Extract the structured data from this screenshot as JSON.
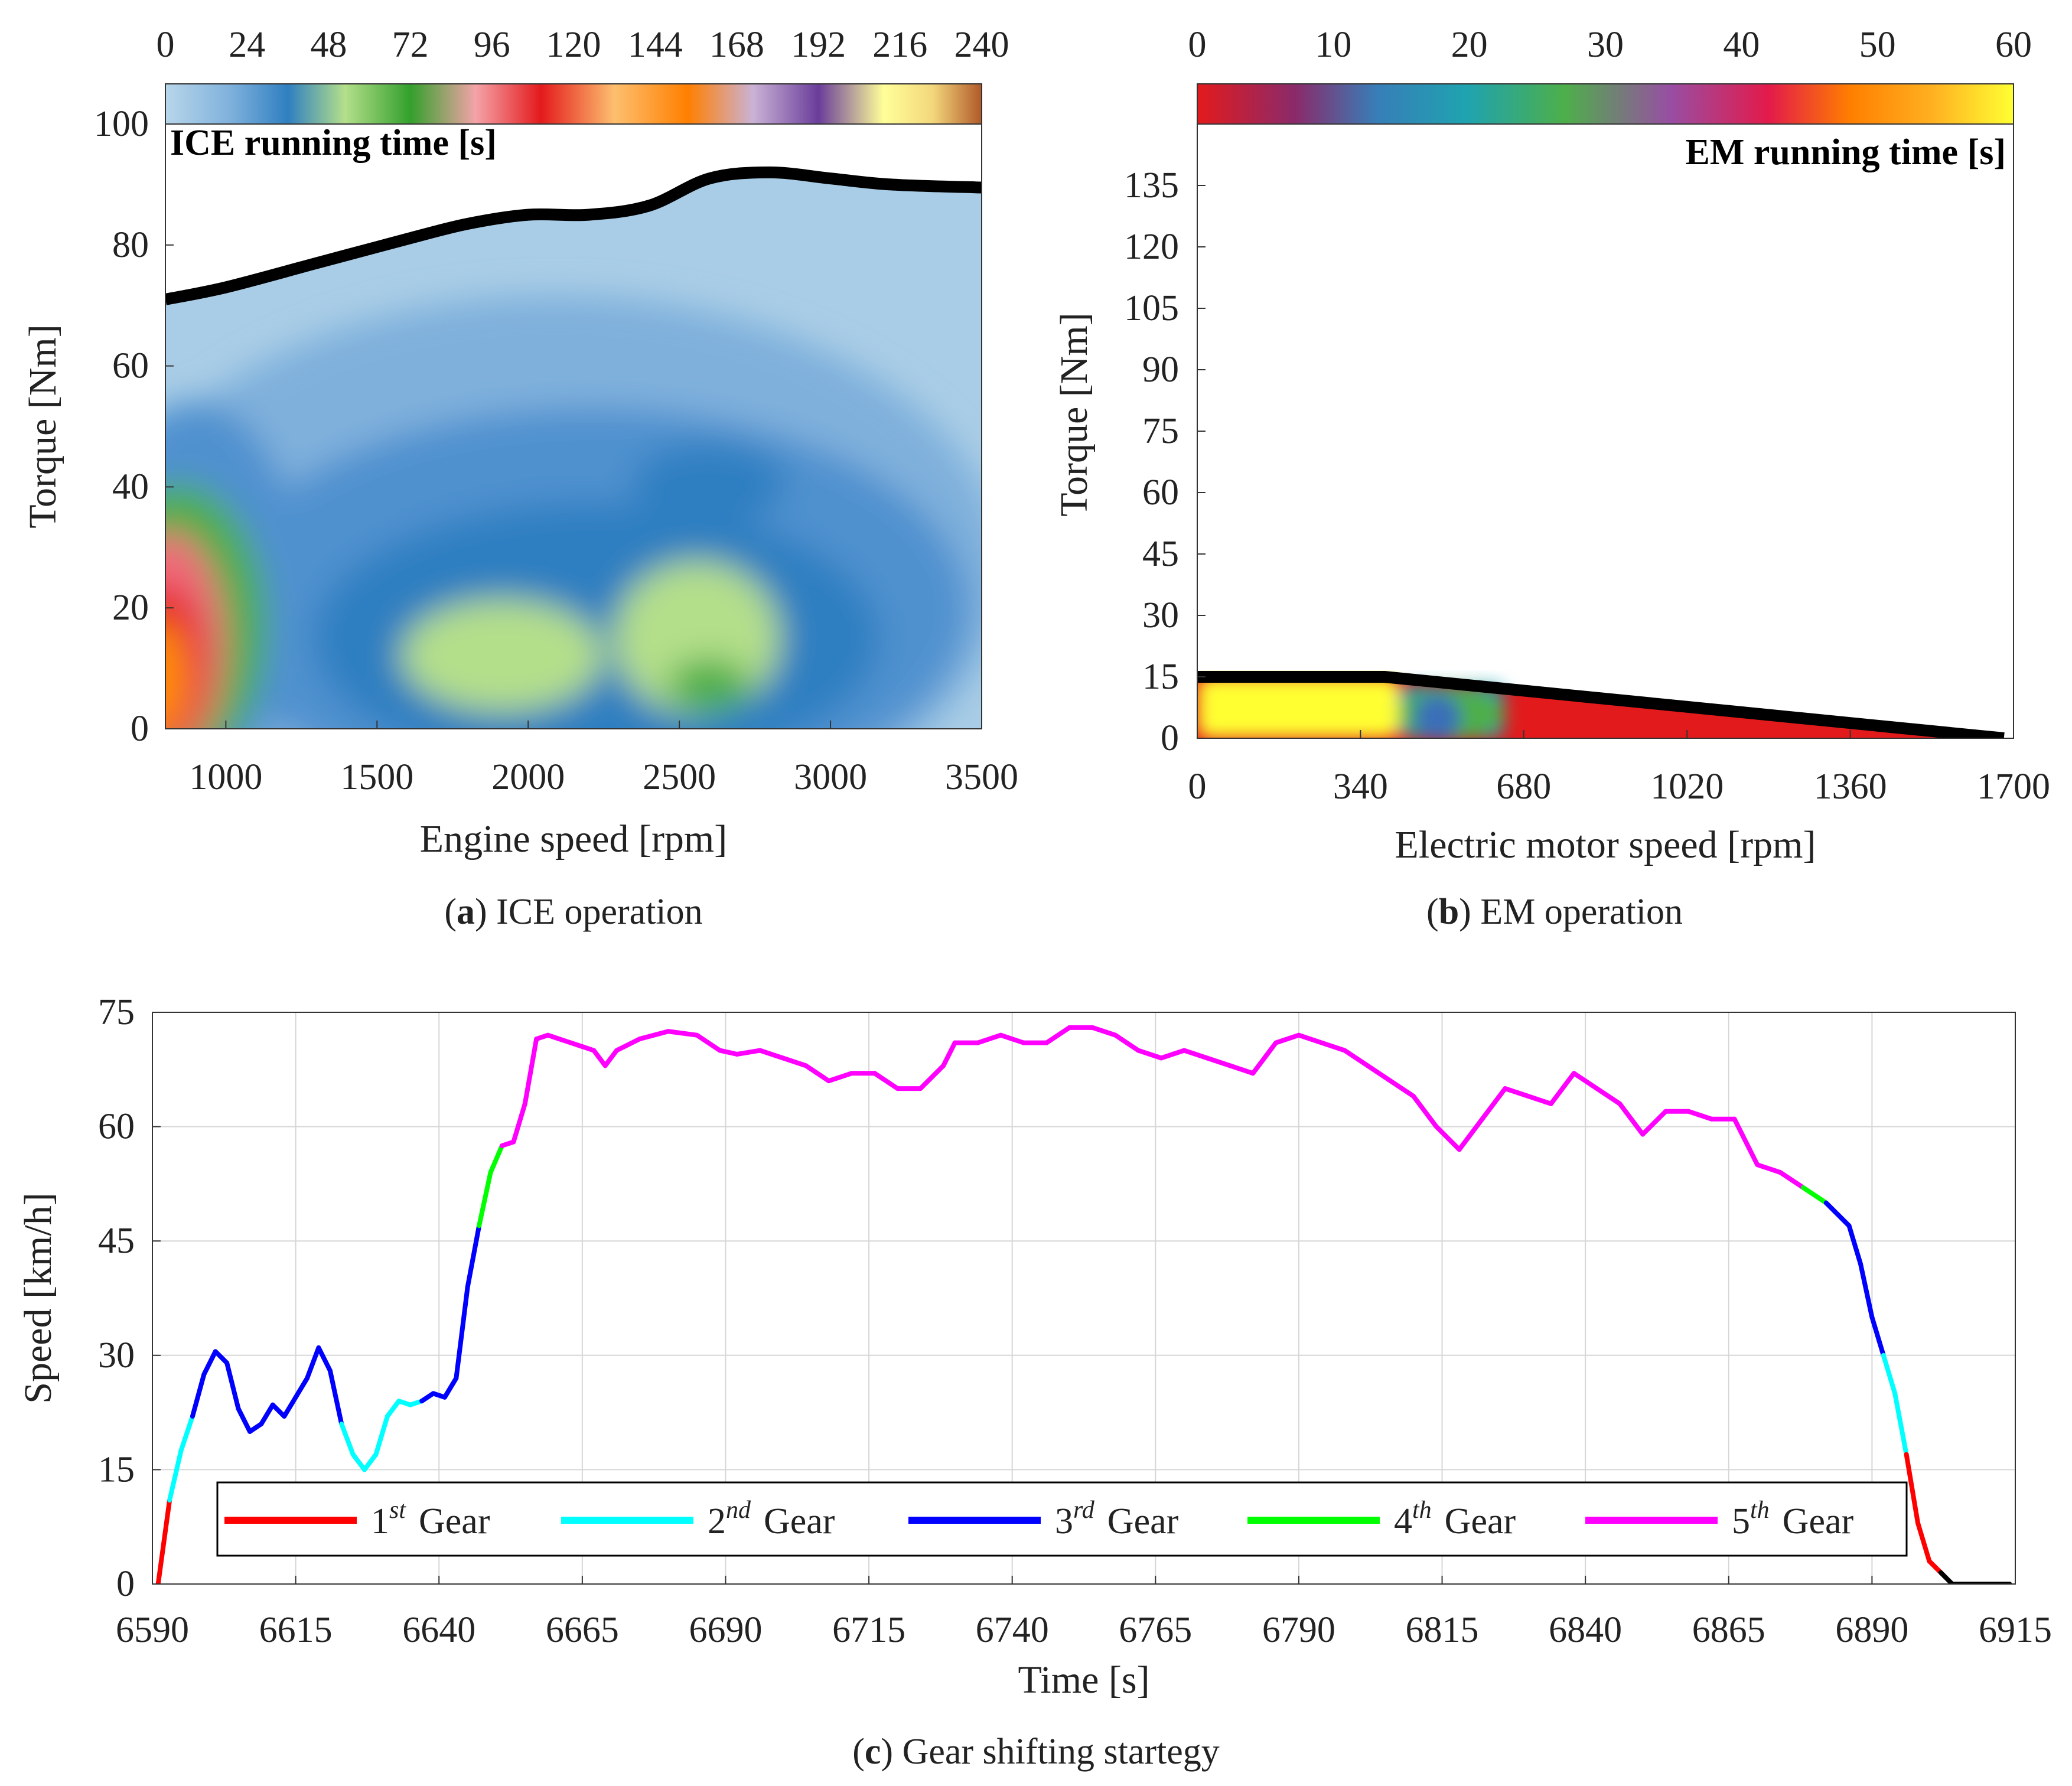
{
  "figure": {
    "panels": {
      "a": {
        "caption_letter": "a",
        "caption_text": "ICE operation",
        "inner_label": "ICE running time [s]",
        "xlabel": "Engine speed [rpm]",
        "ylabel": "Torque [Nm]",
        "x_ticks": [
          "1000",
          "1500",
          "2000",
          "2500",
          "3000",
          "3500"
        ],
        "y_ticks": [
          "0",
          "20",
          "40",
          "60",
          "80",
          "100"
        ],
        "colorbar_ticks": [
          "0",
          "24",
          "48",
          "72",
          "96",
          "120",
          "144",
          "168",
          "192",
          "216",
          "240"
        ]
      },
      "b": {
        "caption_letter": "b",
        "caption_text": "EM operation",
        "inner_label": "EM running time [s]",
        "xlabel": "Electric motor speed [rpm]",
        "ylabel": "Torque [Nm]",
        "x_ticks": [
          "0",
          "340",
          "680",
          "1020",
          "1360",
          "1700"
        ],
        "y_ticks": [
          "0",
          "15",
          "30",
          "45",
          "60",
          "75",
          "90",
          "105",
          "120",
          "135"
        ],
        "colorbar_ticks": [
          "0",
          "10",
          "20",
          "30",
          "40",
          "50",
          "60"
        ]
      },
      "c": {
        "caption_letter": "c",
        "caption_text": "Gear shifting startegy",
        "xlabel": "Time [s]",
        "ylabel": "Speed [km/h]",
        "x_ticks": [
          "6590",
          "6615",
          "6640",
          "6665",
          "6690",
          "6715",
          "6740",
          "6765",
          "6790",
          "6815",
          "6840",
          "6865",
          "6890",
          "6915"
        ],
        "y_ticks": [
          "0",
          "15",
          "30",
          "45",
          "60",
          "75"
        ],
        "legend": [
          {
            "ord": "1",
            "sup": "st",
            "word": "Gear",
            "color": "#ff0000"
          },
          {
            "ord": "2",
            "sup": "nd",
            "word": "Gear",
            "color": "#00ffff"
          },
          {
            "ord": "3",
            "sup": "rd",
            "word": "Gear",
            "color": "#0000ff"
          },
          {
            "ord": "4",
            "sup": "th",
            "word": "Gear",
            "color": "#00ff00"
          },
          {
            "ord": "5",
            "sup": "th",
            "word": "Gear",
            "color": "#ff00ff"
          }
        ]
      }
    }
  },
  "chart_data": [
    {
      "type": "heatmap",
      "panel": "a",
      "title": "ICE running time [s]",
      "xlabel": "Engine speed [rpm]",
      "ylabel": "Torque [Nm]",
      "xlim": [
        800,
        3500
      ],
      "ylim": [
        0,
        100
      ],
      "clim": [
        0,
        240
      ],
      "max_torque_curve": {
        "x": [
          800,
          1000,
          1300,
          1600,
          1800,
          2000,
          2200,
          2400,
          2600,
          2800,
          3000,
          3200,
          3500
        ],
        "y": [
          71,
          73,
          77,
          81,
          83.5,
          85,
          85,
          86.5,
          91,
          92,
          91,
          90,
          89.5
        ]
      },
      "hotspots": [
        {
          "x": 850,
          "y": 8,
          "value": 140
        },
        {
          "x": 860,
          "y": 18,
          "value": 100
        },
        {
          "x": 1000,
          "y": 25,
          "value": 70
        },
        {
          "x": 1850,
          "y": 11,
          "value": 45
        },
        {
          "x": 2600,
          "y": 7,
          "value": 65
        },
        {
          "x": 2450,
          "y": 18,
          "value": 40
        },
        {
          "x": 2600,
          "y": 36,
          "value": 25
        },
        {
          "x": 2100,
          "y": 32,
          "value": 15
        }
      ]
    },
    {
      "type": "heatmap",
      "panel": "b",
      "title": "EM running time [s]",
      "xlabel": "Electric motor speed [rpm]",
      "ylabel": "Torque [Nm]",
      "xlim": [
        0,
        1700
      ],
      "ylim": [
        0,
        150
      ],
      "clim": [
        0,
        60
      ],
      "max_torque_curve": {
        "x": [
          0,
          390,
          1680
        ],
        "y": [
          15,
          15,
          0
        ]
      },
      "regions": [
        {
          "x_range": [
            0,
            420
          ],
          "y_range": [
            0,
            15
          ],
          "value": 58
        },
        {
          "x_range": [
            420,
            640
          ],
          "y_range": [
            0,
            13
          ],
          "value": 20
        },
        {
          "x_range": [
            640,
            1680
          ],
          "y_range": [
            0,
            12
          ],
          "value": 0
        }
      ]
    },
    {
      "type": "line",
      "panel": "c",
      "title": "Gear shifting startegy",
      "xlabel": "Time [s]",
      "ylabel": "Speed [km/h]",
      "xlim": [
        6590,
        6915
      ],
      "ylim": [
        0,
        75
      ],
      "legend_position": "bottom",
      "x": [
        6591,
        6593,
        6595,
        6597,
        6599,
        6601,
        6603,
        6605,
        6607,
        6609,
        6611,
        6613,
        6615,
        6617,
        6619,
        6621,
        6623,
        6625,
        6627,
        6629,
        6631,
        6633,
        6635,
        6637,
        6639,
        6641,
        6643,
        6645,
        6647,
        6649,
        6651,
        6653,
        6655,
        6657,
        6659,
        6661,
        6663,
        6665,
        6667,
        6669,
        6671,
        6675,
        6680,
        6685,
        6689,
        6692,
        6696,
        6700,
        6704,
        6708,
        6712,
        6716,
        6720,
        6724,
        6728,
        6730,
        6734,
        6738,
        6742,
        6746,
        6750,
        6754,
        6758,
        6762,
        6766,
        6770,
        6774,
        6778,
        6782,
        6786,
        6790,
        6794,
        6798,
        6802,
        6806,
        6810,
        6814,
        6818,
        6822,
        6826,
        6830,
        6834,
        6838,
        6842,
        6846,
        6850,
        6854,
        6858,
        6862,
        6866,
        6870,
        6874,
        6878,
        6882,
        6886,
        6888,
        6890,
        6892,
        6894,
        6896,
        6898,
        6900,
        6902,
        6904,
        6906,
        6908,
        6910,
        6912,
        6914
      ],
      "y": [
        0,
        11,
        17.5,
        22,
        27.5,
        30.5,
        29,
        23,
        20,
        21,
        23.5,
        22,
        24.5,
        27,
        31,
        28,
        21,
        17,
        15,
        17,
        22,
        24,
        23.5,
        24,
        25,
        24.5,
        27,
        39,
        47,
        54,
        57.5,
        58,
        63,
        71.5,
        72,
        71.5,
        71,
        70.5,
        70,
        68,
        70,
        71.5,
        72.5,
        72,
        70,
        69.5,
        70,
        69,
        68,
        66,
        67,
        67,
        65,
        65,
        68,
        71,
        71,
        72,
        71,
        71,
        73,
        73,
        72,
        70,
        69,
        70,
        69,
        68,
        67,
        71,
        72,
        71,
        70,
        68,
        66,
        64,
        60,
        57,
        61,
        65,
        64,
        63,
        67,
        65,
        63,
        59,
        62,
        62,
        61,
        61,
        55,
        54,
        52,
        50,
        47,
        42,
        35,
        30,
        25,
        17,
        8,
        3,
        1.5,
        0,
        0,
        0,
        0,
        0,
        0
      ],
      "gear": [
        1,
        1,
        2,
        2,
        3,
        3,
        3,
        3,
        3,
        3,
        3,
        3,
        3,
        3,
        3,
        3,
        3,
        2,
        2,
        2,
        2,
        2,
        2,
        2,
        3,
        3,
        3,
        3,
        3,
        4,
        4,
        5,
        5,
        5,
        5,
        5,
        5,
        5,
        5,
        5,
        5,
        5,
        5,
        5,
        5,
        5,
        5,
        5,
        5,
        5,
        5,
        5,
        5,
        5,
        5,
        5,
        5,
        5,
        5,
        5,
        5,
        5,
        5,
        5,
        5,
        5,
        5,
        5,
        5,
        5,
        5,
        5,
        5,
        5,
        5,
        5,
        5,
        5,
        5,
        5,
        5,
        5,
        5,
        5,
        5,
        5,
        5,
        5,
        5,
        5,
        5,
        5,
        5,
        4,
        3,
        3,
        3,
        3,
        2,
        2,
        1,
        1,
        0,
        0,
        0,
        0,
        0,
        0,
        0
      ]
    }
  ]
}
